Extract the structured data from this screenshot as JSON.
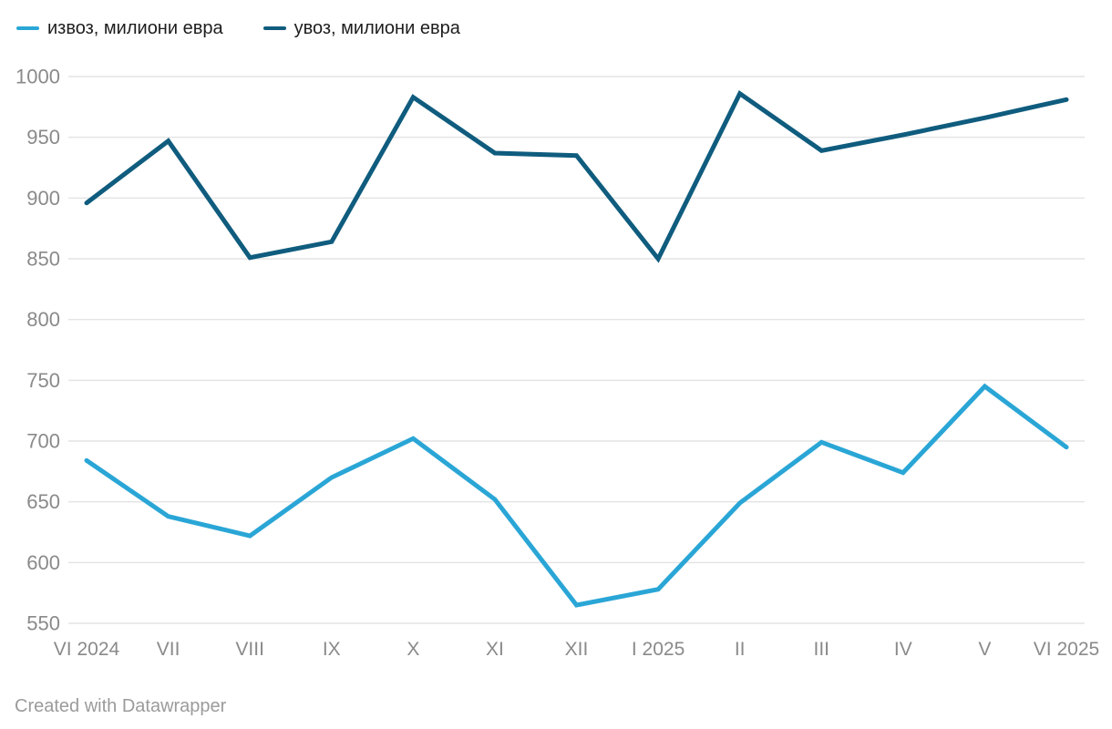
{
  "legend": {
    "items": [
      {
        "id": "izvoz",
        "label": "извоз, милиони евра",
        "color": "#2AA6D6"
      },
      {
        "id": "uvoz",
        "label": "увоз, милиони евра",
        "color": "#0F5C7E"
      }
    ]
  },
  "chart_data": {
    "type": "line",
    "x": [
      "VI 2024",
      "VII",
      "VIII",
      "IX",
      "X",
      "XI",
      "XII",
      "I 2025",
      "II",
      "III",
      "IV",
      "V",
      "VI 2025"
    ],
    "series": [
      {
        "name": "извоз, милиони евра",
        "color": "#2AA6D6",
        "values": [
          684,
          638,
          622,
          670,
          702,
          652,
          565,
          578,
          649,
          699,
          674,
          745,
          695
        ]
      },
      {
        "name": "увоз, милиони евра",
        "color": "#0F5C7E",
        "values": [
          896,
          947,
          851,
          864,
          983,
          937,
          935,
          850,
          986,
          939,
          952,
          966,
          981
        ]
      }
    ],
    "title": "",
    "xlabel": "",
    "ylabel": "",
    "ylim": [
      550,
      1000
    ],
    "y_ticks": [
      550,
      600,
      650,
      700,
      750,
      800,
      850,
      900,
      950,
      1000
    ],
    "grid": "horizontal",
    "legend_position": "top-left"
  },
  "footer": {
    "text": "Created with Datawrapper"
  },
  "colors": {
    "background": "#ffffff",
    "grid": "#e4e4e4",
    "axis_label": "#8a8a8a",
    "legend_text": "#1d1d1d",
    "footer_text": "#9b9b9b"
  }
}
